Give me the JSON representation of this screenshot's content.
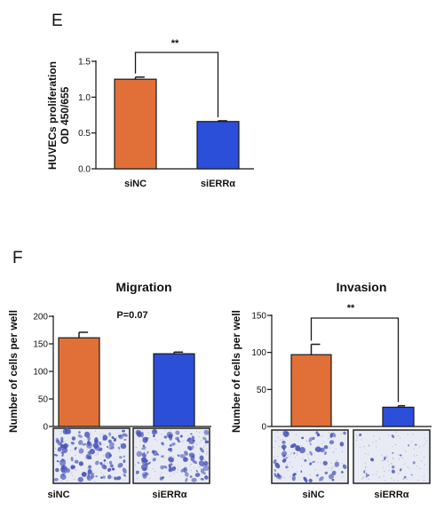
{
  "panels": [
    {
      "id": "E",
      "label": "E"
    },
    {
      "id": "F",
      "label": "F"
    }
  ],
  "colors": {
    "siNC": "#E07038",
    "siERRa": "#2B4FD8",
    "axis": "#111111",
    "well_bg": "#e8ebf4",
    "cell": "#4a56b8"
  },
  "chart_data": [
    {
      "id": "proliferation",
      "type": "bar",
      "title": "",
      "xlabel": "",
      "ylabel": "HUVECs proliferation OD 450/655",
      "ylabel_lines": [
        "HUVECs proliferation",
        "OD 450/655"
      ],
      "ylim": [
        0,
        1.5
      ],
      "yticks": [
        "0.0",
        "0.5",
        "1.0",
        "1.5"
      ],
      "categories": [
        "siNC",
        "siERRα"
      ],
      "values": [
        1.25,
        0.66
      ],
      "errors": [
        0.03,
        0.01
      ],
      "annotation": {
        "text": "**",
        "type": "bracket"
      }
    },
    {
      "id": "migration",
      "type": "bar",
      "title": "Migration",
      "xlabel": "",
      "ylabel": "Number of cells per well",
      "ylim": [
        0,
        200
      ],
      "yticks": [
        "0",
        "50",
        "100",
        "150",
        "200"
      ],
      "categories": [
        "siNC",
        "siERRα"
      ],
      "values": [
        161,
        132
      ],
      "errors": [
        10,
        3
      ],
      "annotation": {
        "text": "P=0.07",
        "type": "text"
      }
    },
    {
      "id": "invasion",
      "type": "bar",
      "title": "Invasion",
      "xlabel": "",
      "ylabel": "Number of cells per well",
      "ylim": [
        0,
        150
      ],
      "yticks": [
        "0",
        "50",
        "100",
        "150"
      ],
      "categories": [
        "siNC",
        "siERRα"
      ],
      "values": [
        97,
        26
      ],
      "errors": [
        14,
        2
      ],
      "annotation": {
        "text": "**",
        "type": "bracket"
      }
    }
  ]
}
